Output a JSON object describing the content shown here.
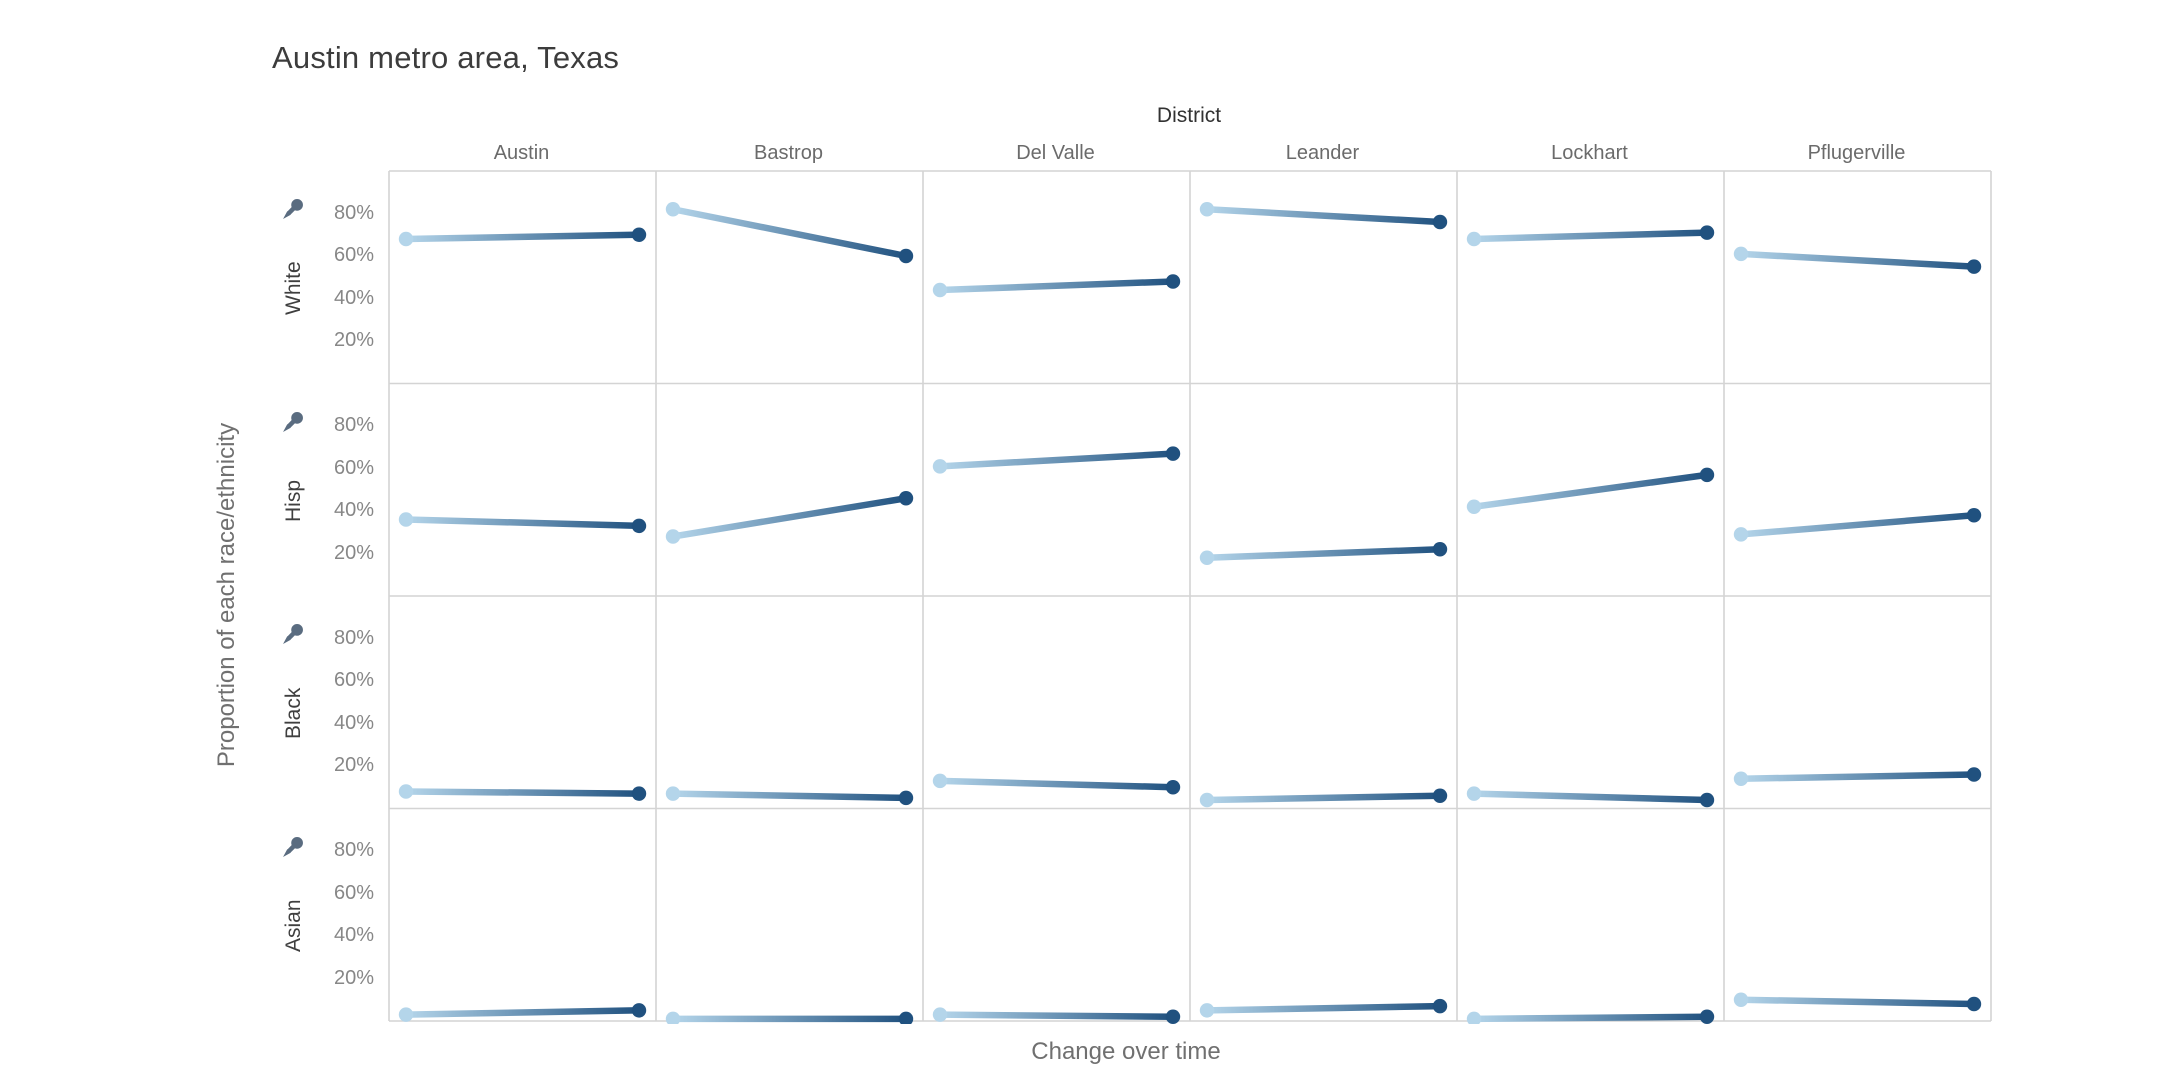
{
  "colors": {
    "start_point": "#b4d5ea",
    "end_point": "#20517f",
    "grid_border": "#d4d4d4",
    "pin_icon": "#5a6c80"
  },
  "chart_data": {
    "type": "line",
    "layout": "small-multiples-trellis",
    "title": "Austin metro area, Texas",
    "column_header": "District",
    "xlabel": "Change over time",
    "ylabel": "Proportion of each race/ethnicity",
    "columns": [
      "Austin",
      "Bastrop",
      "Del Valle",
      "Leander",
      "Lockhart",
      "Pflugerville"
    ],
    "row_categories": [
      "White",
      "Hisp",
      "Black",
      "Asian"
    ],
    "ytick_labels": [
      "80%",
      "60%",
      "40%",
      "20%"
    ],
    "yticks_percent": [
      80,
      60,
      40,
      20
    ],
    "ylim": [
      0,
      100
    ],
    "grid": true,
    "legend": "none",
    "series_description": "Each cell: line from earlier time point (light blue dot) to later time point (dark blue dot), values in percent of district population",
    "rows": [
      {
        "label": "White",
        "pinned": true,
        "cells": [
          {
            "district": "Austin",
            "start": 68,
            "end": 70
          },
          {
            "district": "Bastrop",
            "start": 82,
            "end": 60
          },
          {
            "district": "Del Valle",
            "start": 44,
            "end": 48
          },
          {
            "district": "Leander",
            "start": 82,
            "end": 76
          },
          {
            "district": "Lockhart",
            "start": 68,
            "end": 71
          },
          {
            "district": "Pflugerville",
            "start": 61,
            "end": 55
          }
        ]
      },
      {
        "label": "Hisp",
        "pinned": true,
        "cells": [
          {
            "district": "Austin",
            "start": 36,
            "end": 33
          },
          {
            "district": "Bastrop",
            "start": 28,
            "end": 46
          },
          {
            "district": "Del Valle",
            "start": 61,
            "end": 67
          },
          {
            "district": "Leander",
            "start": 18,
            "end": 22
          },
          {
            "district": "Lockhart",
            "start": 42,
            "end": 57
          },
          {
            "district": "Pflugerville",
            "start": 29,
            "end": 38
          }
        ]
      },
      {
        "label": "Black",
        "pinned": true,
        "cells": [
          {
            "district": "Austin",
            "start": 8,
            "end": 7
          },
          {
            "district": "Bastrop",
            "start": 7,
            "end": 5
          },
          {
            "district": "Del Valle",
            "start": 13,
            "end": 10
          },
          {
            "district": "Leander",
            "start": 4,
            "end": 6
          },
          {
            "district": "Lockhart",
            "start": 7,
            "end": 4
          },
          {
            "district": "Pflugerville",
            "start": 14,
            "end": 16
          }
        ]
      },
      {
        "label": "Asian",
        "pinned": true,
        "cells": [
          {
            "district": "Austin",
            "start": 3,
            "end": 5
          },
          {
            "district": "Bastrop",
            "start": 1,
            "end": 1
          },
          {
            "district": "Del Valle",
            "start": 3,
            "end": 2
          },
          {
            "district": "Leander",
            "start": 5,
            "end": 7
          },
          {
            "district": "Lockhart",
            "start": 1,
            "end": 2
          },
          {
            "district": "Pflugerville",
            "start": 10,
            "end": 8
          }
        ]
      }
    ]
  }
}
